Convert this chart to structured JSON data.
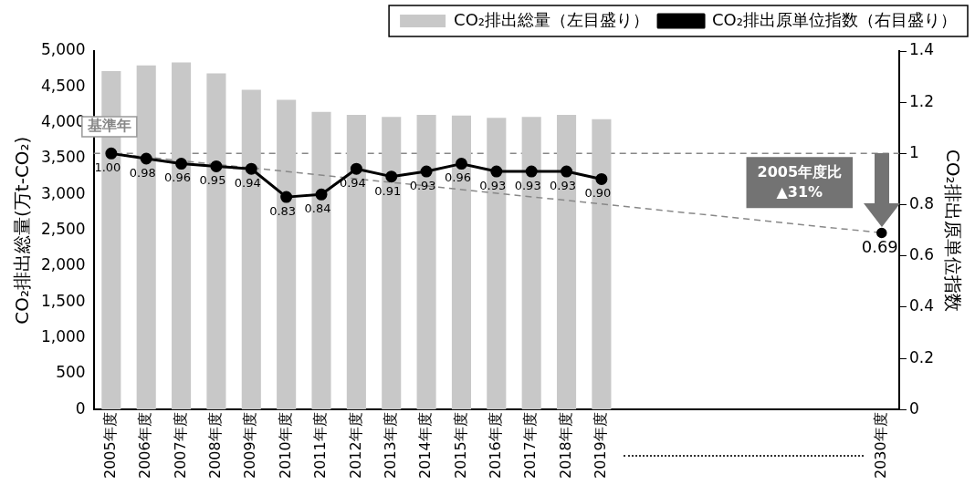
{
  "chart_data": {
    "type": "bar",
    "categories": [
      "2005年度",
      "2006年度",
      "2007年度",
      "2008年度",
      "2009年度",
      "2010年度",
      "2011年度",
      "2012年度",
      "2013年度",
      "2014年度",
      "2015年度",
      "2016年度",
      "2017年度",
      "2018年度",
      "2019年度",
      null,
      null,
      null,
      null,
      null,
      null,
      null,
      "2030年度"
    ],
    "series": [
      {
        "name": "CO₂排出総量（左目盛り）",
        "color": "#c8c8c8",
        "values": [
          4720,
          4800,
          4840,
          4690,
          4460,
          4320,
          4150,
          4110,
          4080,
          4110,
          4100,
          4070,
          4080,
          4110,
          4050,
          null,
          null,
          null,
          null,
          null,
          null,
          null,
          null
        ]
      },
      {
        "name": "CO₂排出原単位指数（右目盛り）",
        "type": "line",
        "axis": "y2",
        "color": "#000000",
        "marker": "circle",
        "line_style": "solid",
        "values": [
          1.0,
          0.98,
          0.96,
          0.95,
          0.94,
          0.83,
          0.84,
          0.94,
          0.91,
          0.93,
          0.96,
          0.93,
          0.93,
          0.93,
          0.9,
          null,
          null,
          null,
          null,
          null,
          null,
          null,
          null
        ],
        "value_labels": [
          "1.00",
          "0.98",
          "0.96",
          "0.95",
          "0.94",
          "0.83",
          "0.84",
          "0.94",
          "0.91",
          "0.93",
          "0.96",
          "0.93",
          "0.93",
          "0.93",
          "0.90",
          null,
          null,
          null,
          null,
          null,
          null,
          null,
          null
        ]
      },
      {
        "type": "line",
        "axis": "y2",
        "color": "#888888",
        "marker": "circle",
        "line_style": "dashed",
        "values": [
          1.0,
          null,
          null,
          null,
          null,
          null,
          null,
          null,
          null,
          null,
          null,
          null,
          null,
          null,
          null,
          null,
          null,
          null,
          null,
          null,
          null,
          null,
          0.69
        ],
        "value_labels": [
          null,
          null,
          null,
          null,
          null,
          null,
          null,
          null,
          null,
          null,
          null,
          null,
          null,
          null,
          null,
          null,
          null,
          null,
          null,
          null,
          null,
          null,
          "0.69"
        ]
      }
    ],
    "ylabel": "CO₂排出総量(万t-CO₂)",
    "y2label": "CO₂排出原単位指数",
    "ylim": [
      0,
      5000
    ],
    "yticks": [
      0,
      500,
      {
        "value": 1000,
        "label": "1,000"
      },
      {
        "value": 1500,
        "label": "1,500"
      },
      {
        "value": 2000,
        "label": "2,000"
      },
      {
        "value": 2500,
        "label": "2,500"
      },
      {
        "value": 3000,
        "label": "3,000"
      },
      {
        "value": 3500,
        "label": "3,500"
      },
      {
        "value": 4000,
        "label": "4,000"
      },
      {
        "value": 4500,
        "label": "4,500"
      },
      {
        "value": 5000,
        "label": "5,000"
      }
    ],
    "y2lim": [
      0,
      1.4
    ],
    "y2ticks": [
      0,
      0.2,
      0.4,
      0.6,
      0.8,
      1,
      1.2,
      1.4
    ],
    "ref_lines": [
      {
        "axis": "y2",
        "value": 1,
        "color": "#888888",
        "line_style": "dashed"
      }
    ],
    "annotations": [
      "基準年",
      "2005年度比\n▲31%"
    ],
    "legend": "top right",
    "grid": false
  }
}
